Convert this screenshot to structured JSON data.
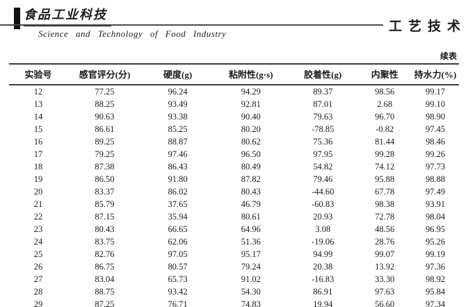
{
  "header": {
    "logo_cn": "食品工业科技",
    "journal_en": "Science  and  Technology  of  Food  Industry",
    "section_label": "工艺技术"
  },
  "table": {
    "continued_label": "续表",
    "columns": [
      "实验号",
      "感官评分(分)",
      "硬度(g)",
      "粘附性(g·s)",
      "胶着性(g)",
      "内聚性",
      "持水力(%)"
    ],
    "rows": [
      [
        "12",
        "77.25",
        "96.24",
        "94.29",
        "89.37",
        "98.56",
        "99.17"
      ],
      [
        "13",
        "88.25",
        "93.49",
        "92.81",
        "87.01",
        "2.68",
        "99.10"
      ],
      [
        "14",
        "90.63",
        "93.38",
        "90.40",
        "79.63",
        "96.70",
        "98.90"
      ],
      [
        "15",
        "86.61",
        "85.25",
        "80.20",
        "-78.85",
        "-0.82",
        "97.45"
      ],
      [
        "16",
        "89.25",
        "88.87",
        "80.62",
        "75.36",
        "81.44",
        "98.46"
      ],
      [
        "17",
        "79.25",
        "97.46",
        "96.50",
        "97.95",
        "99.28",
        "99.26"
      ],
      [
        "18",
        "87.38",
        "86.43",
        "80.49",
        "54.82",
        "74.12",
        "97.73"
      ],
      [
        "19",
        "86.50",
        "91.80",
        "87.82",
        "79.46",
        "95.88",
        "98.88"
      ],
      [
        "20",
        "83.37",
        "86.02",
        "80.43",
        "-44.60",
        "67.78",
        "97.49"
      ],
      [
        "21",
        "85.79",
        "37.65",
        "46.79",
        "-60.83",
        "98.38",
        "93.91"
      ],
      [
        "22",
        "87.15",
        "35.94",
        "80.61",
        "20.93",
        "72.78",
        "98.04"
      ],
      [
        "23",
        "80.43",
        "66.65",
        "64.96",
        "3.08",
        "48.56",
        "96.95"
      ],
      [
        "24",
        "83.75",
        "62.06",
        "51.36",
        "-19.06",
        "28.76",
        "95.26"
      ],
      [
        "25",
        "82.76",
        "97.05",
        "95.17",
        "94.99",
        "99.07",
        "99.19"
      ],
      [
        "26",
        "86.75",
        "80.57",
        "79.24",
        "20.38",
        "13.92",
        "97.36"
      ],
      [
        "27",
        "83.04",
        "65.73",
        "91.02",
        "-16.83",
        "33.30",
        "98.92"
      ],
      [
        "28",
        "88.75",
        "93.42",
        "54.30",
        "86.91",
        "97.63",
        "95.84"
      ],
      [
        "29",
        "87.25",
        "76.71",
        "74.83",
        "19.94",
        "56.60",
        "97.34"
      ]
    ]
  }
}
